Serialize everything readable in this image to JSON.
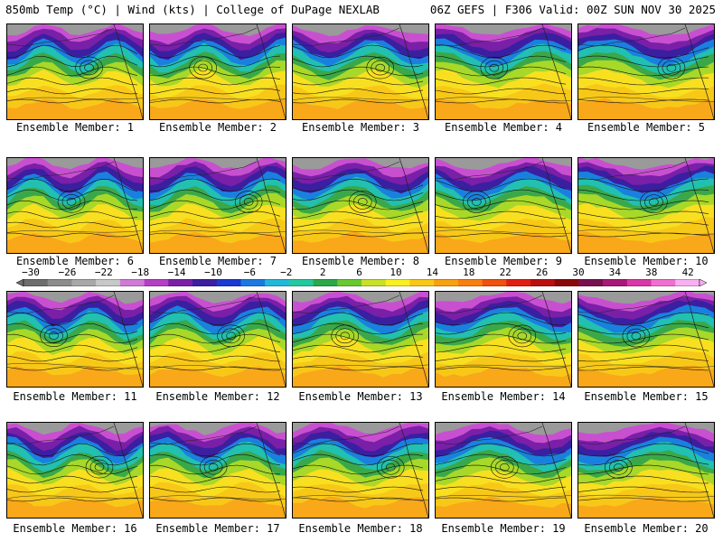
{
  "header": {
    "left": "850mb Temp (°C) | Wind (kts) | College of DuPage NEXLAB",
    "right": "06Z GEFS | F306 Valid: 00Z SUN NOV 30 2025"
  },
  "members": [
    {
      "label": "Ensemble Member: 1"
    },
    {
      "label": "Ensemble Member: 2"
    },
    {
      "label": "Ensemble Member: 3"
    },
    {
      "label": "Ensemble Member: 4"
    },
    {
      "label": "Ensemble Member: 5"
    },
    {
      "label": "Ensemble Member: 6"
    },
    {
      "label": "Ensemble Member: 7"
    },
    {
      "label": "Ensemble Member: 8"
    },
    {
      "label": "Ensemble Member: 9"
    },
    {
      "label": "Ensemble Member: 10"
    },
    {
      "label": "Ensemble Member: 11"
    },
    {
      "label": "Ensemble Member: 12"
    },
    {
      "label": "Ensemble Member: 13"
    },
    {
      "label": "Ensemble Member: 14"
    },
    {
      "label": "Ensemble Member: 15"
    },
    {
      "label": "Ensemble Member: 16"
    },
    {
      "label": "Ensemble Member: 17"
    },
    {
      "label": "Ensemble Member: 18"
    },
    {
      "label": "Ensemble Member: 19"
    },
    {
      "label": "Ensemble Member: 20"
    }
  ],
  "colorbar": {
    "labels": [
      "−30",
      "−26",
      "−22",
      "−18",
      "−14",
      "−10",
      "−6",
      "−2",
      "2",
      "6",
      "10",
      "14",
      "18",
      "22",
      "26",
      "30",
      "34",
      "38",
      "42"
    ],
    "colors": [
      "#6e6e6e",
      "#8c8c8c",
      "#a8a8a8",
      "#c8c8c8",
      "#d07ad8",
      "#b43fc4",
      "#7a1fa8",
      "#3a1fa0",
      "#1a3ad0",
      "#1a7ae0",
      "#22b8d8",
      "#22c8a0",
      "#2aa84a",
      "#6ac830",
      "#c8e028",
      "#f8f020",
      "#f8c818",
      "#f8a010",
      "#f88010",
      "#f05010",
      "#e02010",
      "#b81010",
      "#8a0808",
      "#781050",
      "#a81878",
      "#d838a8",
      "#f070d0",
      "#f8b0f0"
    ]
  }
}
